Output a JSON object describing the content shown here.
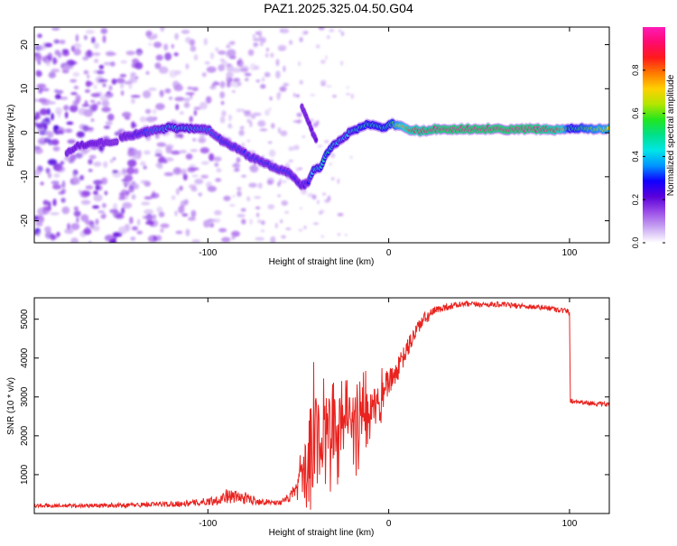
{
  "title": "PAZ1.2025.325.04.50.G04",
  "colors": {
    "snr_line": "#e8231f",
    "axis": "#000000",
    "spectrogram_background": "#ffffff"
  },
  "chart_data": [
    {
      "id": "spectrogram",
      "type": "heatmap",
      "title": "PAZ1.2025.325.04.50.G04",
      "xlabel": "Height of straight line (km)",
      "ylabel": "Frequency (Hz)",
      "xlim": [
        -196,
        122
      ],
      "ylim": [
        -25,
        24
      ],
      "xticks": [
        -100,
        0,
        100
      ],
      "yticks": [
        -20,
        -10,
        0,
        10,
        20
      ],
      "colorbar": {
        "label": "Normalized spectral amplitude",
        "range": [
          0,
          1
        ],
        "ticks": [
          "0.0",
          "0.2",
          "0.4",
          "0.6",
          "0.8"
        ],
        "colormap": [
          "#ffffff",
          "#c9a6f2",
          "#9b4de8",
          "#5a00d9",
          "#1000ff",
          "#0094ff",
          "#00e6e6",
          "#00e08a",
          "#22e61e",
          "#b4e600",
          "#ffd000",
          "#ff7a00",
          "#ff1a1a",
          "#ff0a6e",
          "#ff1ab8"
        ]
      },
      "ridge": {
        "x": [
          -148,
          -135,
          -122,
          -112,
          -100,
          -92,
          -84,
          -76,
          -68,
          -60,
          -54,
          -50,
          -47,
          -44,
          -42,
          -38,
          -34,
          -30,
          -26,
          -20,
          -14,
          -8,
          -3,
          2,
          6,
          12,
          20,
          30,
          45,
          60,
          80,
          95,
          100,
          110,
          122
        ],
        "y": [
          -1.0,
          0.0,
          1.2,
          1.0,
          0.8,
          -2.0,
          -3.5,
          -5.5,
          -7.0,
          -8.5,
          -9.2,
          -11.5,
          -12.0,
          -11.0,
          -8.5,
          -8.0,
          -4.5,
          -2.5,
          -1.5,
          0.5,
          1.6,
          1.8,
          1.0,
          2.0,
          1.5,
          0.5,
          0.5,
          0.8,
          0.8,
          0.8,
          0.8,
          0.8,
          1.0,
          0.9,
          0.9
        ],
        "intensity": [
          0.2,
          0.3,
          0.4,
          0.4,
          0.35,
          0.3,
          0.3,
          0.3,
          0.3,
          0.3,
          0.3,
          0.25,
          0.25,
          0.3,
          0.45,
          0.45,
          0.5,
          0.45,
          0.4,
          0.45,
          0.5,
          0.5,
          0.5,
          0.55,
          0.7,
          0.85,
          0.9,
          0.95,
          0.95,
          0.95,
          0.95,
          0.85,
          0.5,
          0.6,
          0.7
        ]
      },
      "secondary_ridge": {
        "x": [
          -48,
          -45,
          -42,
          -40
        ],
        "y": [
          6.0,
          3.0,
          0.0,
          -2.0
        ],
        "intensity": [
          0.18,
          0.2,
          0.2,
          0.2
        ]
      },
      "left_ridge": {
        "x": [
          -178,
          -172,
          -166,
          -158,
          -150
        ],
        "y": [
          -4.5,
          -3.0,
          -2.5,
          -2.2,
          -2.0
        ],
        "intensity": [
          0.18,
          0.2,
          0.2,
          0.18,
          0.16
        ]
      }
    },
    {
      "id": "snr",
      "type": "line",
      "xlabel": "Height of straight line (km)",
      "ylabel": "SNR (10 * v/v)",
      "xlim": [
        -196,
        122
      ],
      "ylim": [
        0,
        5550
      ],
      "xticks": [
        -100,
        0,
        100
      ],
      "yticks": [
        1000,
        2000,
        3000,
        4000,
        5000
      ],
      "series": [
        {
          "name": "SNR",
          "x": [
            -196,
            -170,
            -140,
            -110,
            -95,
            -90,
            -80,
            -70,
            -60,
            -55,
            -50,
            -46,
            -43,
            -40,
            -37,
            -34,
            -30,
            -26,
            -22,
            -18,
            -14,
            -10,
            -6,
            -2,
            0,
            4,
            8,
            12,
            16,
            20,
            25,
            30,
            40,
            50,
            60,
            70,
            80,
            90,
            99,
            100,
            100.5,
            105,
            110,
            115,
            122
          ],
          "y": [
            200,
            200,
            220,
            260,
            340,
            450,
            400,
            300,
            280,
            400,
            650,
            1000,
            1600,
            2100,
            2100,
            2200,
            2200,
            2300,
            2300,
            2400,
            2500,
            2700,
            3100,
            3300,
            3350,
            3600,
            4000,
            4400,
            4800,
            5000,
            5200,
            5300,
            5380,
            5380,
            5380,
            5350,
            5320,
            5280,
            5200,
            5150,
            2900,
            2880,
            2850,
            2820,
            2800
          ],
          "noise_amplitude": [
            50,
            50,
            60,
            80,
            120,
            180,
            160,
            80,
            60,
            120,
            300,
            700,
            1400,
            1100,
            900,
            900,
            800,
            700,
            700,
            650,
            600,
            500,
            450,
            350,
            350,
            300,
            280,
            250,
            200,
            180,
            120,
            100,
            80,
            70,
            70,
            70,
            70,
            70,
            80,
            80,
            60,
            60,
            60,
            60,
            60
          ]
        }
      ]
    }
  ]
}
